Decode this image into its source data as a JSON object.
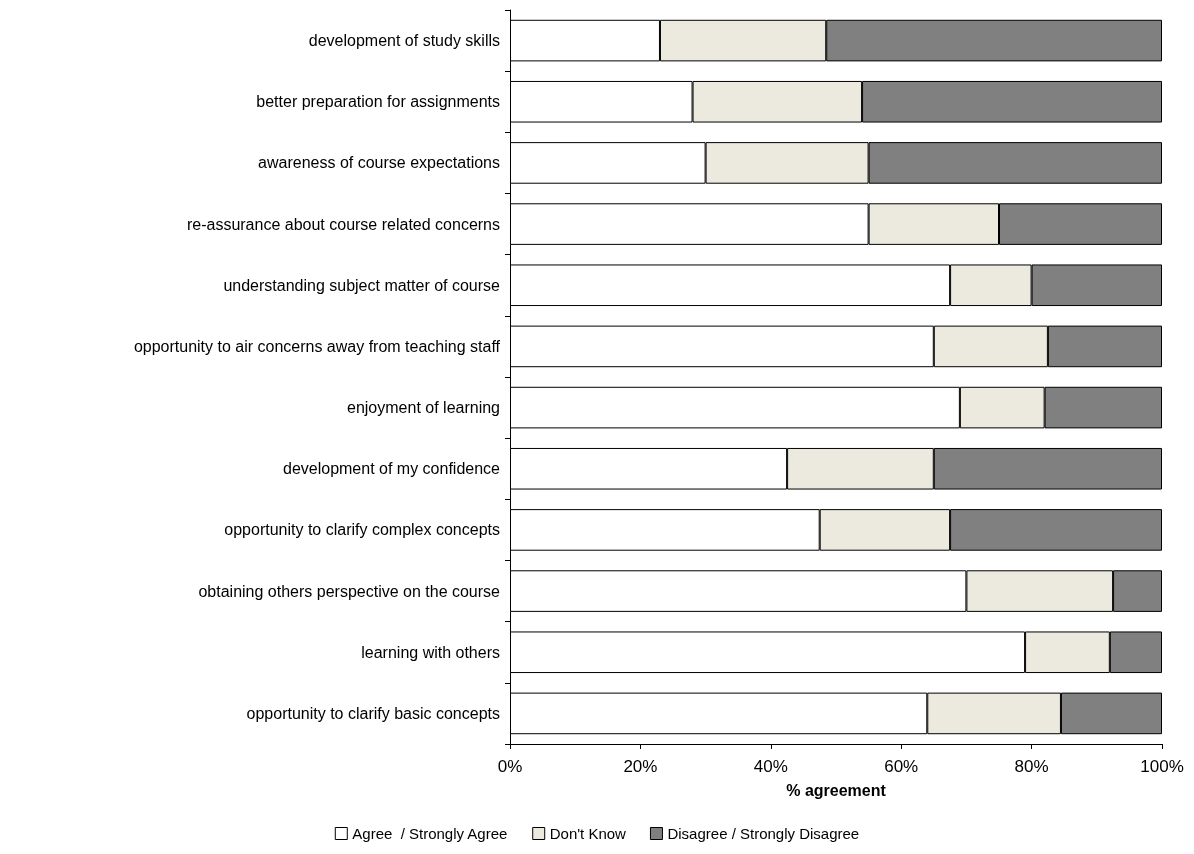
{
  "chart_data": {
    "type": "bar",
    "orientation": "horizontal",
    "stacked": true,
    "xlabel": "% agreement",
    "categories": [
      "development of study skills",
      "better preparation for assignments",
      "awareness of course expectations",
      "re-assurance about course related concerns",
      "understanding subject matter of course",
      "opportunity to air concerns away from teaching staff",
      "enjoyment of learning",
      "development of my confidence",
      "opportunity to clarify complex concepts",
      "obtaining others perspective on the course",
      "learning with others",
      "opportunity to clarify basic concepts"
    ],
    "series": [
      {
        "name": "Agree  / Strongly Agree",
        "color": "#ffffff",
        "values": [
          23,
          28,
          30,
          55,
          67.5,
          65,
          69,
          42.5,
          47.5,
          70,
          79,
          64
        ]
      },
      {
        "name": "Don't Know",
        "color": "#eceadf",
        "values": [
          25.5,
          26,
          25,
          20,
          12.5,
          17.5,
          13,
          22.5,
          20,
          22.5,
          13,
          20.5
        ]
      },
      {
        "name": "Disagree / Strongly Disagree",
        "color": "#808080",
        "values": [
          51.5,
          46,
          45,
          25,
          20,
          17.5,
          18,
          35,
          32.5,
          7.5,
          8,
          15.5
        ]
      }
    ],
    "xlim": [
      0,
      100
    ],
    "xticks": [
      {
        "value": 0,
        "label": "0%"
      },
      {
        "value": 20,
        "label": "20%"
      },
      {
        "value": 40,
        "label": "40%"
      },
      {
        "value": 60,
        "label": "60%"
      },
      {
        "value": 80,
        "label": "80%"
      },
      {
        "value": 100,
        "label": "100%"
      }
    ],
    "grid": false,
    "legend": "bottom"
  }
}
